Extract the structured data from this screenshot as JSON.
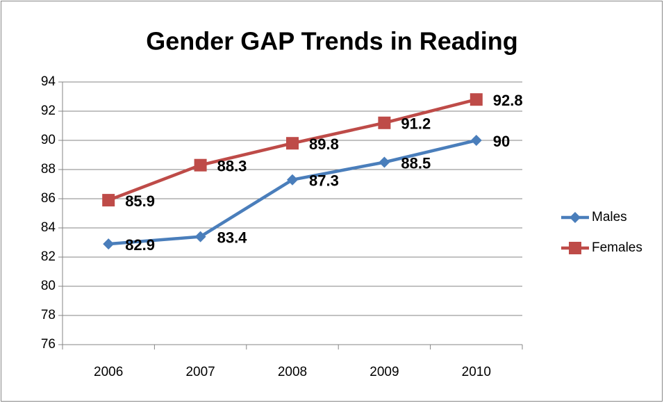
{
  "chart_data": {
    "type": "line",
    "title": "Gender GAP Trends in Reading",
    "categories": [
      "2006",
      "2007",
      "2008",
      "2009",
      "2010"
    ],
    "series": [
      {
        "name": "Males",
        "color": "#4a7ebb",
        "marker": "diamond",
        "values": [
          82.9,
          83.4,
          87.3,
          88.5,
          90
        ]
      },
      {
        "name": "Females",
        "color": "#be4b48",
        "marker": "square",
        "values": [
          85.9,
          88.3,
          89.8,
          91.2,
          92.8
        ]
      }
    ],
    "ylim": [
      76,
      94
    ],
    "yticks": [
      76,
      78,
      80,
      82,
      84,
      86,
      88,
      90,
      92,
      94
    ],
    "grid": true,
    "legend": "right"
  }
}
